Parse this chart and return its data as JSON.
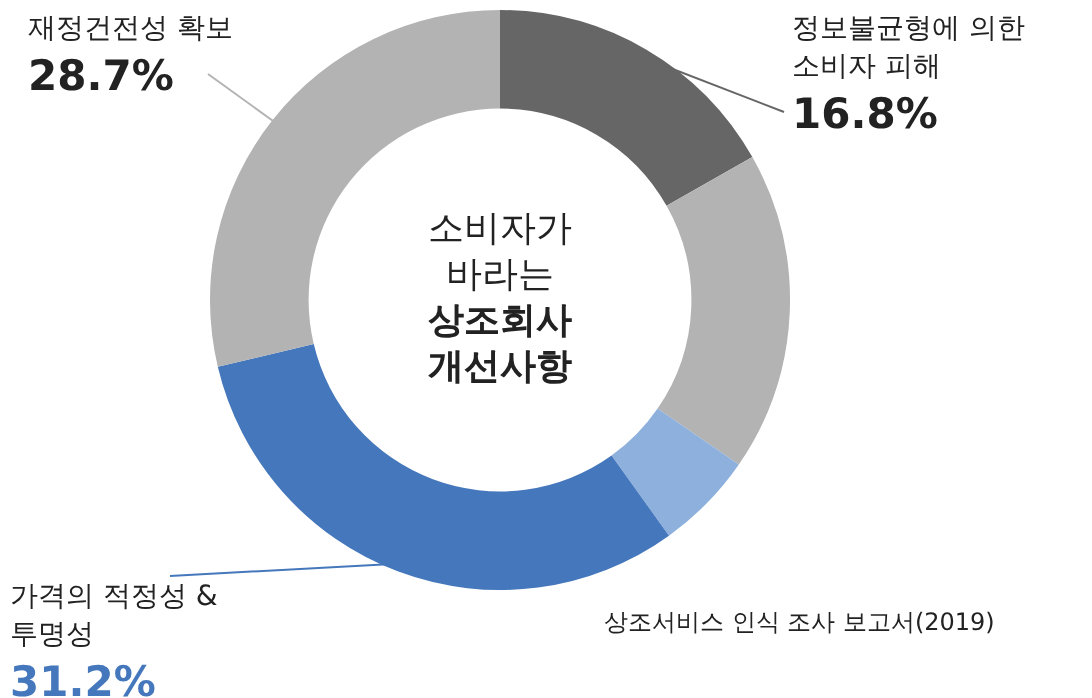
{
  "chart_data": {
    "type": "donut",
    "title": "소비자가 바라는 상조회사 개선사항",
    "categories": [
      "정보불균형에 의한 소비자 피해",
      null,
      null,
      "가격의 적정성 & 투명성",
      "재정건전성 확보"
    ],
    "values": [
      16.8,
      17.8,
      5.5,
      31.2,
      28.7
    ],
    "colors": [
      "#666666",
      "#b3b3b3",
      "#8db0dd",
      "#4477bb",
      "#b3b3b3"
    ],
    "value_labels": [
      "16.8%",
      null,
      null,
      "31.2%",
      "28.7%"
    ],
    "annotations": [
      "상조서비스 인식 조사 보고서(2019)"
    ],
    "legend": false
  }
}
